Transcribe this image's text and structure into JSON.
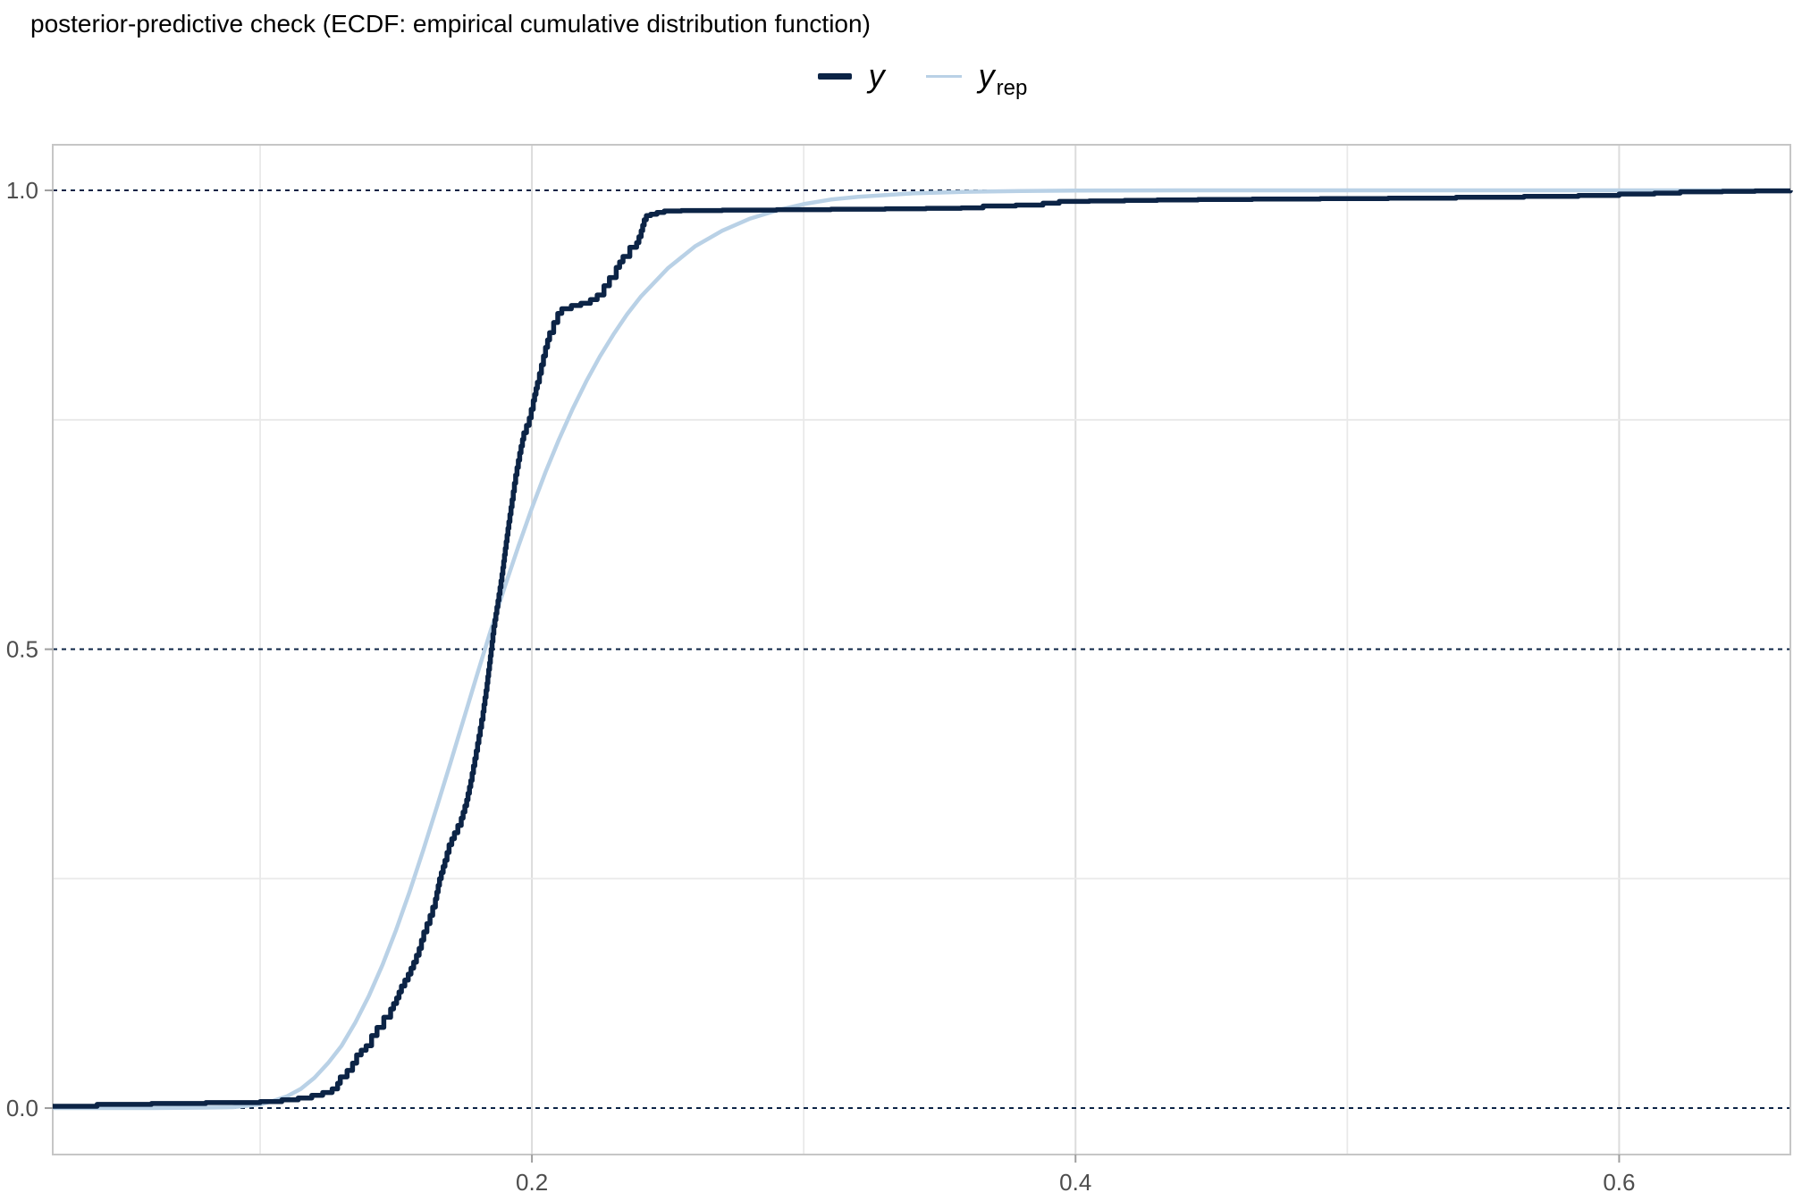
{
  "title": "posterior-predictive check (ECDF: empirical cumulative distribution function)",
  "legend": {
    "items": [
      {
        "label": "y",
        "sub": "",
        "color": "#0c2446"
      },
      {
        "label": "y",
        "sub": "rep",
        "color": "#b9d1e6"
      }
    ]
  },
  "colors": {
    "y_line": "#0c2446",
    "yrep_line": "#b9d1e6",
    "dashed_hline": "#0c2446",
    "grid_major": "#dcdcdc",
    "grid_minor": "#e9e9e9",
    "panel_border": "#c6c6c6",
    "tick_mark": "#9e9e9e",
    "tick_text": "#4d4d4d",
    "background": "#ffffff"
  },
  "chart_data": {
    "type": "line",
    "title": "posterior-predictive check (ECDF: empirical cumulative distribution function)",
    "xlabel": "",
    "ylabel": "",
    "x_axis": {
      "range": [
        0.0237,
        0.663
      ],
      "ticks": [
        0.2,
        0.4,
        0.6
      ],
      "tick_labels": [
        "0.2",
        "0.4",
        "0.6"
      ],
      "minor_gridlines": [
        0.1,
        0.3,
        0.5
      ]
    },
    "y_axis": {
      "range": [
        -0.0506,
        1.0497
      ],
      "ticks": [
        0.0,
        0.5,
        1.0
      ],
      "tick_labels": [
        "0.0",
        "0.5",
        "1.0"
      ],
      "minor_gridlines": [
        0.25,
        0.75
      ],
      "dashed_hlines": [
        0.0,
        0.5,
        1.0
      ]
    },
    "legend_position": "top-center",
    "grid": true,
    "series": [
      {
        "name": "yrep",
        "label": "y_rep",
        "style": "smooth",
        "color": "#b9d1e6",
        "width": 4.5,
        "points": [
          [
            0.0237,
            0.0
          ],
          [
            0.06,
            0.0
          ],
          [
            0.08,
            0.0005
          ],
          [
            0.09,
            0.001
          ],
          [
            0.1,
            0.004
          ],
          [
            0.105,
            0.008
          ],
          [
            0.11,
            0.013
          ],
          [
            0.115,
            0.021
          ],
          [
            0.12,
            0.033
          ],
          [
            0.125,
            0.049
          ],
          [
            0.13,
            0.068
          ],
          [
            0.135,
            0.093
          ],
          [
            0.14,
            0.122
          ],
          [
            0.145,
            0.156
          ],
          [
            0.15,
            0.194
          ],
          [
            0.155,
            0.236
          ],
          [
            0.16,
            0.281
          ],
          [
            0.165,
            0.328
          ],
          [
            0.17,
            0.376
          ],
          [
            0.175,
            0.425
          ],
          [
            0.18,
            0.474
          ],
          [
            0.185,
            0.522
          ],
          [
            0.19,
            0.568
          ],
          [
            0.195,
            0.612
          ],
          [
            0.2,
            0.654
          ],
          [
            0.205,
            0.693
          ],
          [
            0.21,
            0.729
          ],
          [
            0.215,
            0.762
          ],
          [
            0.22,
            0.792
          ],
          [
            0.225,
            0.819
          ],
          [
            0.23,
            0.843
          ],
          [
            0.235,
            0.865
          ],
          [
            0.24,
            0.884
          ],
          [
            0.25,
            0.915
          ],
          [
            0.26,
            0.939
          ],
          [
            0.27,
            0.956
          ],
          [
            0.28,
            0.969
          ],
          [
            0.29,
            0.978
          ],
          [
            0.3,
            0.985
          ],
          [
            0.31,
            0.99
          ],
          [
            0.32,
            0.993
          ],
          [
            0.34,
            0.9967
          ],
          [
            0.36,
            0.9985
          ],
          [
            0.38,
            0.9993
          ],
          [
            0.4,
            0.9997
          ],
          [
            0.44,
            1.0
          ],
          [
            0.663,
            1.0
          ]
        ]
      },
      {
        "name": "y",
        "label": "y",
        "style": "step",
        "color": "#0c2446",
        "width": 5.5,
        "points": [
          [
            0.0237,
            0.002
          ],
          [
            0.04,
            0.004
          ],
          [
            0.06,
            0.005
          ],
          [
            0.08,
            0.006
          ],
          [
            0.1,
            0.007
          ],
          [
            0.108,
            0.009
          ],
          [
            0.114,
            0.011
          ],
          [
            0.119,
            0.014
          ],
          [
            0.123,
            0.017
          ],
          [
            0.1265,
            0.021
          ],
          [
            0.1285,
            0.027
          ],
          [
            0.1295,
            0.034
          ],
          [
            0.132,
            0.041
          ],
          [
            0.134,
            0.049
          ],
          [
            0.1355,
            0.058
          ],
          [
            0.1372,
            0.063
          ],
          [
            0.139,
            0.068
          ],
          [
            0.141,
            0.079
          ],
          [
            0.143,
            0.088
          ],
          [
            0.1455,
            0.099
          ],
          [
            0.148,
            0.108
          ],
          [
            0.1502,
            0.12
          ],
          [
            0.152,
            0.133
          ],
          [
            0.1545,
            0.146
          ],
          [
            0.1565,
            0.159
          ],
          [
            0.1585,
            0.174
          ],
          [
            0.1602,
            0.192
          ],
          [
            0.1625,
            0.21
          ],
          [
            0.1645,
            0.228
          ],
          [
            0.166,
            0.25
          ],
          [
            0.168,
            0.27
          ],
          [
            0.1695,
            0.287
          ],
          [
            0.1715,
            0.3
          ],
          [
            0.174,
            0.316
          ],
          [
            0.176,
            0.336
          ],
          [
            0.1775,
            0.357
          ],
          [
            0.179,
            0.381
          ],
          [
            0.1805,
            0.406
          ],
          [
            0.182,
            0.432
          ],
          [
            0.1835,
            0.463
          ],
          [
            0.185,
            0.5
          ],
          [
            0.186,
            0.525
          ],
          [
            0.1875,
            0.553
          ],
          [
            0.189,
            0.582
          ],
          [
            0.1902,
            0.61
          ],
          [
            0.1915,
            0.639
          ],
          [
            0.1927,
            0.663
          ],
          [
            0.194,
            0.69
          ],
          [
            0.1955,
            0.714
          ],
          [
            0.197,
            0.736
          ],
          [
            0.199,
            0.752
          ],
          [
            0.2005,
            0.771
          ],
          [
            0.202,
            0.791
          ],
          [
            0.2035,
            0.81
          ],
          [
            0.205,
            0.829
          ],
          [
            0.2065,
            0.845
          ],
          [
            0.208,
            0.856
          ],
          [
            0.2095,
            0.866
          ],
          [
            0.211,
            0.871
          ],
          [
            0.2145,
            0.8745
          ],
          [
            0.218,
            0.877
          ],
          [
            0.2215,
            0.881
          ],
          [
            0.224,
            0.886
          ],
          [
            0.2265,
            0.896
          ],
          [
            0.2285,
            0.905
          ],
          [
            0.231,
            0.916
          ],
          [
            0.2335,
            0.928
          ],
          [
            0.236,
            0.938
          ],
          [
            0.2385,
            0.943
          ],
          [
            0.2402,
            0.956
          ],
          [
            0.2413,
            0.968
          ],
          [
            0.2421,
            0.9725
          ],
          [
            0.2437,
            0.974
          ],
          [
            0.246,
            0.976
          ],
          [
            0.2487,
            0.9775
          ],
          [
            0.255,
            0.978
          ],
          [
            0.27,
            0.9785
          ],
          [
            0.29,
            0.979
          ],
          [
            0.31,
            0.9795
          ],
          [
            0.33,
            0.98
          ],
          [
            0.345,
            0.9805
          ],
          [
            0.358,
            0.981
          ],
          [
            0.366,
            0.983
          ],
          [
            0.378,
            0.984
          ],
          [
            0.388,
            0.986
          ],
          [
            0.394,
            0.988
          ],
          [
            0.405,
            0.9885
          ],
          [
            0.418,
            0.989
          ],
          [
            0.43,
            0.9895
          ],
          [
            0.445,
            0.99
          ],
          [
            0.465,
            0.9905
          ],
          [
            0.49,
            0.991
          ],
          [
            0.515,
            0.9915
          ],
          [
            0.54,
            0.9925
          ],
          [
            0.565,
            0.9935
          ],
          [
            0.585,
            0.9945
          ],
          [
            0.6,
            0.996
          ],
          [
            0.613,
            0.997
          ],
          [
            0.6225,
            0.9985
          ],
          [
            0.638,
            0.999
          ],
          [
            0.65,
            0.9995
          ],
          [
            0.663,
            1.0
          ]
        ]
      }
    ]
  }
}
